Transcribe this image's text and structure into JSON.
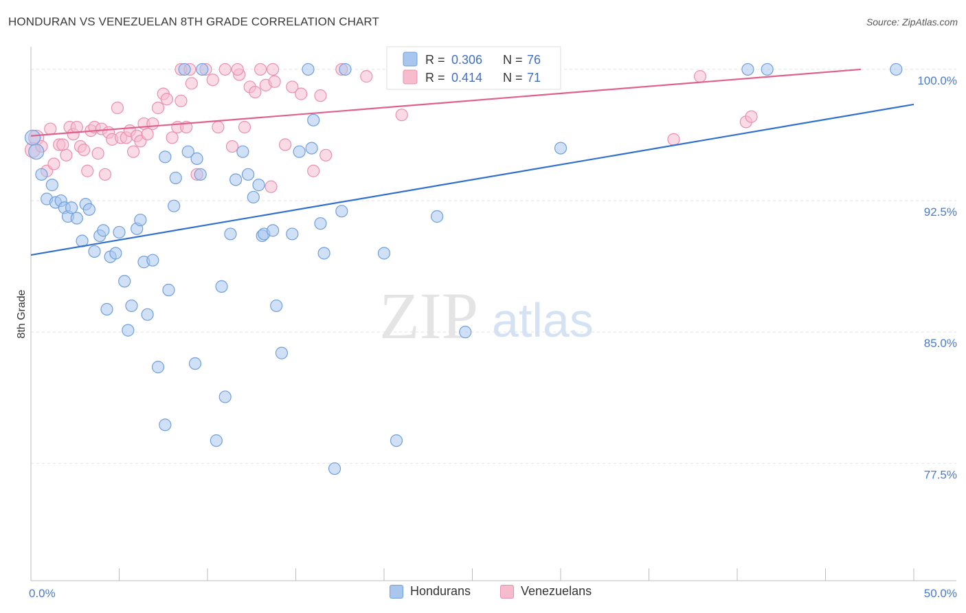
{
  "header": {
    "title": "HONDURAN VS VENEZUELAN 8TH GRADE CORRELATION CHART",
    "source": "Source: ZipAtlas.com"
  },
  "watermark": {
    "zip": "ZIP",
    "atlas": "atlas"
  },
  "colors": {
    "blue_fill": "#a9c6ee",
    "blue_stroke": "#6f9fdc",
    "blue_line": "#2f6fcf",
    "pink_fill": "#f6bccd",
    "pink_stroke": "#ea8fae",
    "pink_line": "#e0608c",
    "tick_text": "#4a7ac8",
    "grid": "#e2e2e2"
  },
  "legend": {
    "row1": {
      "r_label": "R = ",
      "r_value": "0.306",
      "n_label": "N = ",
      "n_value": "76"
    },
    "row2": {
      "r_label": "R = ",
      "r_value": "0.414",
      "n_label": "N = ",
      "n_value": "71"
    }
  },
  "bottom_legend": [
    "Hondurans",
    "Venezuelans"
  ],
  "chart_data": {
    "type": "scatter",
    "title": "HONDURAN VS VENEZUELAN 8TH GRADE CORRELATION CHART",
    "xlabel": "",
    "ylabel": "8th Grade",
    "xlim": [
      0,
      50
    ],
    "ylim": [
      70.8,
      100.9
    ],
    "x_tick_labels": [
      "0.0%",
      "50.0%"
    ],
    "y_ticks": [
      100.0,
      92.5,
      85.0,
      77.5
    ],
    "y_tick_labels": [
      "100.0%",
      "92.5%",
      "85.0%",
      "77.5%"
    ],
    "grid": true,
    "series": [
      {
        "name": "Hondurans",
        "r": 0.306,
        "n": 76,
        "trend": {
          "x": [
            0,
            50
          ],
          "y": [
            89.4,
            98.0
          ]
        },
        "points": [
          [
            0.1,
            96.1
          ],
          [
            0.3,
            95.3
          ],
          [
            0.6,
            94.0
          ],
          [
            0.9,
            92.6
          ],
          [
            1.2,
            93.4
          ],
          [
            1.4,
            92.4
          ],
          [
            1.7,
            92.5
          ],
          [
            1.9,
            92.1
          ],
          [
            2.1,
            91.6
          ],
          [
            2.3,
            92.1
          ],
          [
            2.6,
            91.5
          ],
          [
            2.9,
            90.2
          ],
          [
            3.1,
            92.3
          ],
          [
            3.3,
            92.0
          ],
          [
            3.6,
            89.6
          ],
          [
            3.9,
            90.5
          ],
          [
            4.1,
            90.8
          ],
          [
            4.3,
            86.3
          ],
          [
            4.5,
            89.3
          ],
          [
            4.8,
            89.5
          ],
          [
            5.0,
            90.7
          ],
          [
            5.3,
            87.9
          ],
          [
            5.5,
            85.1
          ],
          [
            5.7,
            86.5
          ],
          [
            6.0,
            90.9
          ],
          [
            6.2,
            91.4
          ],
          [
            6.4,
            89.0
          ],
          [
            6.6,
            86.0
          ],
          [
            6.9,
            89.1
          ],
          [
            7.2,
            83.0
          ],
          [
            7.6,
            79.7
          ],
          [
            7.8,
            87.4
          ],
          [
            8.1,
            92.2
          ],
          [
            8.2,
            93.8
          ],
          [
            7.6,
            95.0
          ],
          [
            8.9,
            95.3
          ],
          [
            9.4,
            94.9
          ],
          [
            9.6,
            94.0
          ],
          [
            9.3,
            83.2
          ],
          [
            10.5,
            78.8
          ],
          [
            10.8,
            87.6
          ],
          [
            11.0,
            81.3
          ],
          [
            11.3,
            90.6
          ],
          [
            11.6,
            93.7
          ],
          [
            12.0,
            95.3
          ],
          [
            12.3,
            94.0
          ],
          [
            12.6,
            92.7
          ],
          [
            12.9,
            93.4
          ],
          [
            13.1,
            90.5
          ],
          [
            13.2,
            90.6
          ],
          [
            13.7,
            90.8
          ],
          [
            13.9,
            86.5
          ],
          [
            14.2,
            83.8
          ],
          [
            14.8,
            90.6
          ],
          [
            15.2,
            95.3
          ],
          [
            15.9,
            95.5
          ],
          [
            16.0,
            97.1
          ],
          [
            16.4,
            91.2
          ],
          [
            16.6,
            89.5
          ],
          [
            17.2,
            77.2
          ],
          [
            17.6,
            91.9
          ],
          [
            17.8,
            100.0
          ],
          [
            20.0,
            89.5
          ],
          [
            20.7,
            78.8
          ],
          [
            21.5,
            100.0
          ],
          [
            23.0,
            91.6
          ],
          [
            24.6,
            85.0
          ],
          [
            25.5,
            99.8
          ],
          [
            27.3,
            100.0
          ],
          [
            30.0,
            95.5
          ],
          [
            40.6,
            100.0
          ],
          [
            41.7,
            100.0
          ],
          [
            49.0,
            100.0
          ],
          [
            8.7,
            100.0
          ],
          [
            9.7,
            100.0
          ],
          [
            15.7,
            100.0
          ]
        ]
      },
      {
        "name": "Venezuelans",
        "r": 0.414,
        "n": 71,
        "trend": {
          "x": [
            0,
            47
          ],
          "y": [
            96.2,
            100.0
          ]
        },
        "points": [
          [
            0.1,
            95.4
          ],
          [
            0.3,
            96.1
          ],
          [
            0.6,
            95.6
          ],
          [
            0.9,
            94.2
          ],
          [
            1.1,
            96.6
          ],
          [
            1.3,
            94.6
          ],
          [
            1.6,
            95.7
          ],
          [
            1.8,
            95.7
          ],
          [
            2.0,
            95.1
          ],
          [
            2.2,
            96.7
          ],
          [
            2.4,
            96.3
          ],
          [
            2.6,
            96.7
          ],
          [
            2.8,
            95.6
          ],
          [
            3.0,
            95.4
          ],
          [
            3.2,
            94.2
          ],
          [
            3.4,
            96.5
          ],
          [
            3.6,
            96.7
          ],
          [
            3.8,
            95.2
          ],
          [
            4.0,
            96.6
          ],
          [
            4.2,
            94.0
          ],
          [
            4.4,
            96.4
          ],
          [
            4.6,
            96.0
          ],
          [
            4.9,
            97.8
          ],
          [
            5.1,
            96.1
          ],
          [
            5.4,
            96.1
          ],
          [
            5.6,
            96.5
          ],
          [
            5.8,
            95.3
          ],
          [
            6.0,
            96.2
          ],
          [
            6.2,
            95.9
          ],
          [
            6.4,
            96.9
          ],
          [
            6.6,
            96.3
          ],
          [
            6.9,
            96.9
          ],
          [
            7.2,
            97.8
          ],
          [
            7.5,
            98.6
          ],
          [
            7.7,
            98.3
          ],
          [
            8.0,
            96.1
          ],
          [
            8.3,
            96.7
          ],
          [
            8.5,
            98.2
          ],
          [
            8.8,
            96.7
          ],
          [
            9.1,
            99.2
          ],
          [
            9.4,
            94.0
          ],
          [
            9.9,
            100.0
          ],
          [
            10.3,
            99.4
          ],
          [
            10.6,
            96.7
          ],
          [
            11.0,
            100.0
          ],
          [
            11.4,
            95.6
          ],
          [
            11.8,
            99.7
          ],
          [
            12.1,
            96.7
          ],
          [
            12.4,
            99.0
          ],
          [
            12.7,
            98.7
          ],
          [
            13.0,
            100.0
          ],
          [
            13.3,
            99.1
          ],
          [
            13.6,
            93.3
          ],
          [
            13.8,
            99.3
          ],
          [
            14.4,
            95.7
          ],
          [
            14.8,
            99.0
          ],
          [
            15.3,
            98.6
          ],
          [
            16.0,
            94.2
          ],
          [
            16.4,
            98.5
          ],
          [
            16.7,
            95.1
          ],
          [
            17.6,
            100.0
          ],
          [
            19.0,
            99.6
          ],
          [
            21.0,
            97.4
          ],
          [
            36.4,
            96.0
          ],
          [
            37.9,
            99.6
          ],
          [
            40.5,
            97.0
          ],
          [
            40.8,
            97.3
          ],
          [
            8.5,
            100.0
          ],
          [
            9.0,
            100.0
          ],
          [
            11.7,
            100.0
          ],
          [
            13.7,
            100.0
          ]
        ]
      }
    ]
  }
}
